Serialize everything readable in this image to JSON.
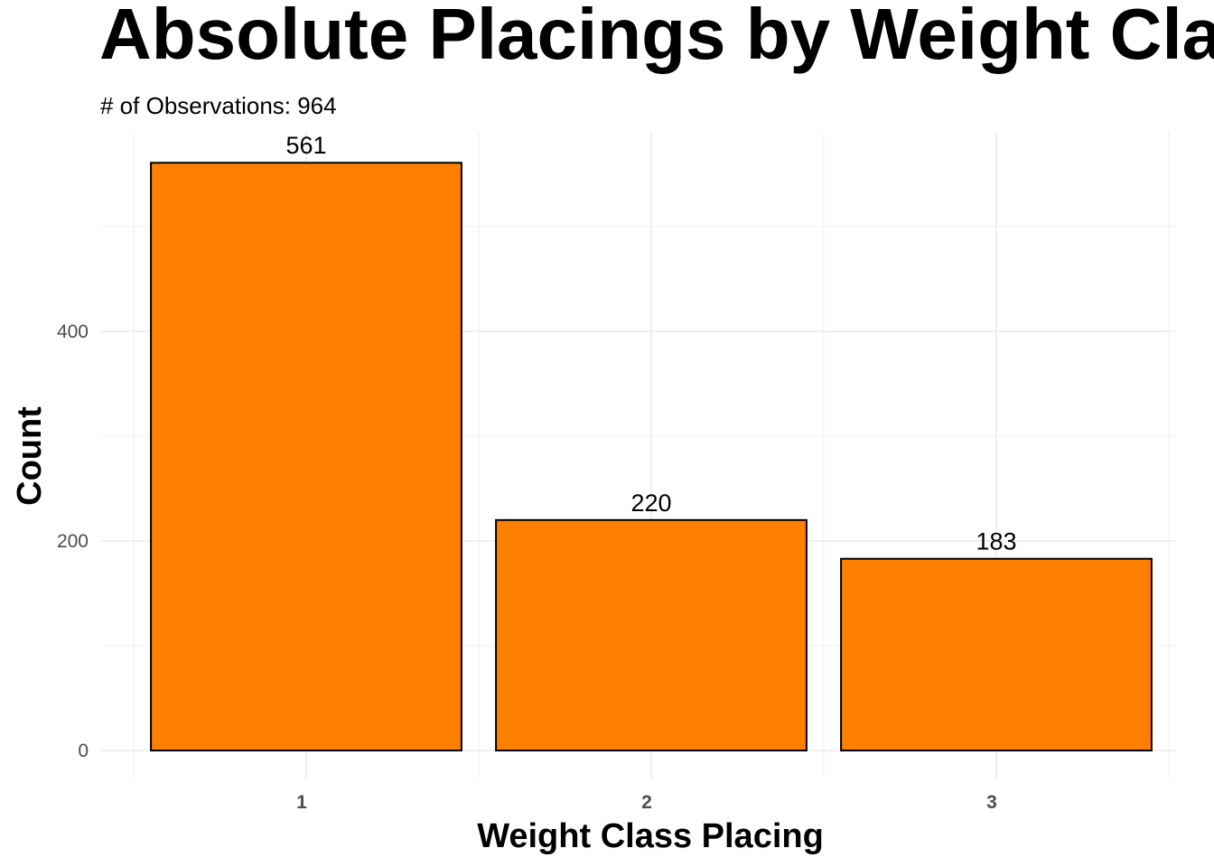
{
  "chart_data": {
    "type": "bar",
    "title": "Absolute Placings by Weight Cla",
    "subtitle": "# of Observations: 964",
    "xlabel": "Weight Class Placing",
    "ylabel": "Count",
    "categories": [
      "1",
      "2",
      "3"
    ],
    "values": [
      561,
      220,
      183
    ],
    "data_labels": [
      "561",
      "220",
      "183"
    ],
    "yticks": [
      0,
      200,
      400
    ],
    "ytick_labels": [
      "0",
      "200",
      "400"
    ],
    "ylim": [
      -27,
      589
    ],
    "grid": true,
    "legend": "none",
    "bar_color": "#ff7f00",
    "bar_edge_color": "#000000"
  }
}
